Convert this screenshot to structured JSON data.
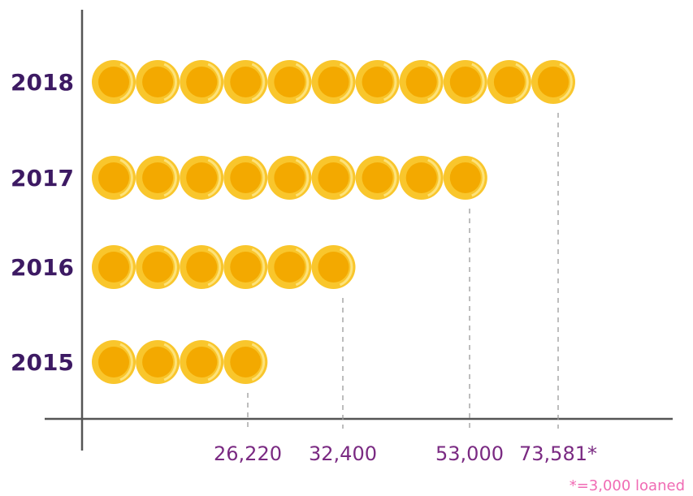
{
  "chart_data": {
    "type": "bar",
    "title": "",
    "xlabel": "",
    "ylabel": "",
    "categories": [
      "2018",
      "2017",
      "2016",
      "2015"
    ],
    "values": [
      73581,
      53000,
      32400,
      26220
    ],
    "value_labels": [
      "73,581*",
      "53,000",
      "32,400",
      "26,220"
    ],
    "coin_counts": [
      11,
      9,
      6,
      4
    ],
    "footnote": "*=3,000 loaned",
    "grid": false,
    "legend": "none"
  },
  "colors": {
    "coin_outer": "#f9c62c",
    "coin_inner": "#f3a900",
    "axis": "#555555",
    "category_text": "#3d1a63",
    "value_text": "#7a2a82",
    "footnote_text": "#f06bb4"
  }
}
